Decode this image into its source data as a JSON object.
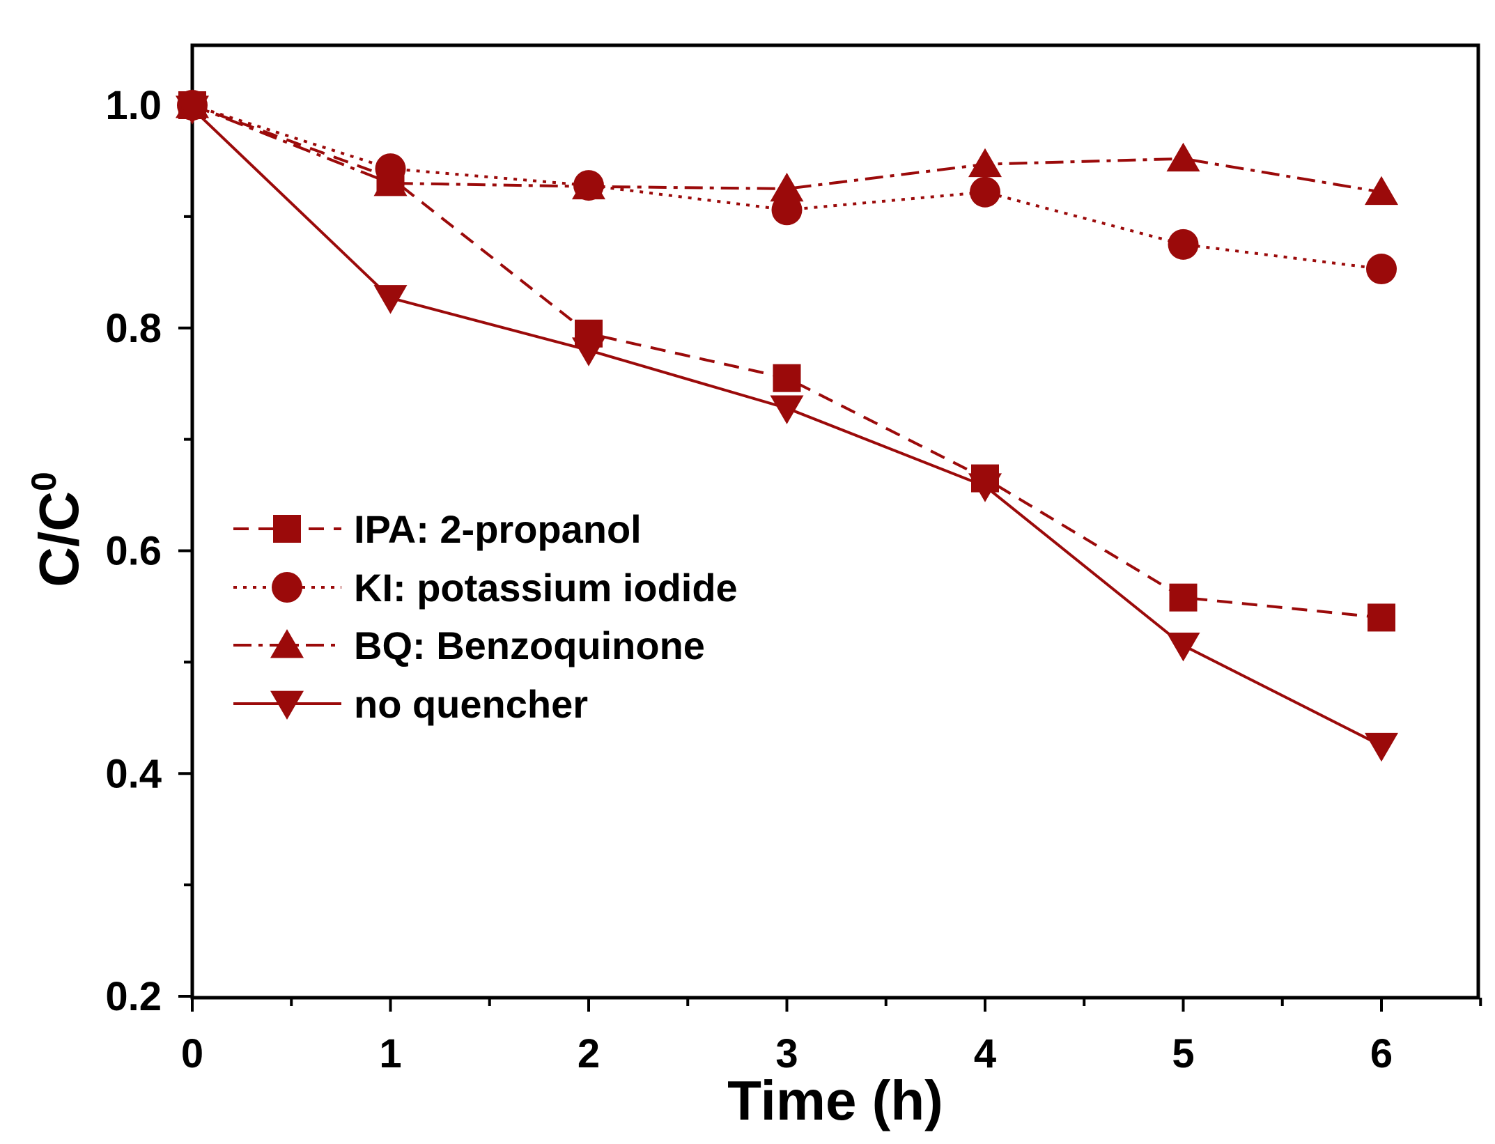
{
  "chart_data": {
    "type": "line",
    "title": "",
    "xlabel": "Time (h)",
    "ylabel_main": "C/C",
    "ylabel_sup": "0",
    "xlim": [
      0,
      6.5
    ],
    "ylim": [
      0.2,
      1.055
    ],
    "x_ticks": [
      0,
      1,
      2,
      3,
      4,
      5,
      6
    ],
    "x_tick_labels": [
      "0",
      "1",
      "2",
      "3",
      "4",
      "5",
      "6"
    ],
    "y_ticks": [
      0.2,
      0.4,
      0.6,
      0.8,
      1.0
    ],
    "y_tick_labels": [
      "0.2",
      "0.4",
      "0.6",
      "0.8",
      "1.0"
    ],
    "grid": false,
    "legend_position": "center-left",
    "color": "#9b0a0a",
    "x": [
      0,
      1,
      2,
      3,
      4,
      5,
      6
    ],
    "series": [
      {
        "name": "IPA: 2-propanol",
        "marker": "square",
        "dash": "dashed",
        "values": [
          1.0,
          0.935,
          0.795,
          0.755,
          0.665,
          0.558,
          0.54
        ]
      },
      {
        "name": "KI: potassium iodide",
        "marker": "circle",
        "dash": "dotted",
        "values": [
          1.0,
          0.943,
          0.928,
          0.906,
          0.922,
          0.875,
          0.853
        ]
      },
      {
        "name": "BQ: Benzoquinone",
        "marker": "triangle-up",
        "dash": "dashdot",
        "values": [
          1.0,
          0.93,
          0.927,
          0.925,
          0.947,
          0.952,
          0.922
        ]
      },
      {
        "name": "no quencher",
        "marker": "triangle-down",
        "dash": "solid",
        "values": [
          0.997,
          0.827,
          0.78,
          0.728,
          0.658,
          0.515,
          0.425
        ]
      }
    ]
  }
}
